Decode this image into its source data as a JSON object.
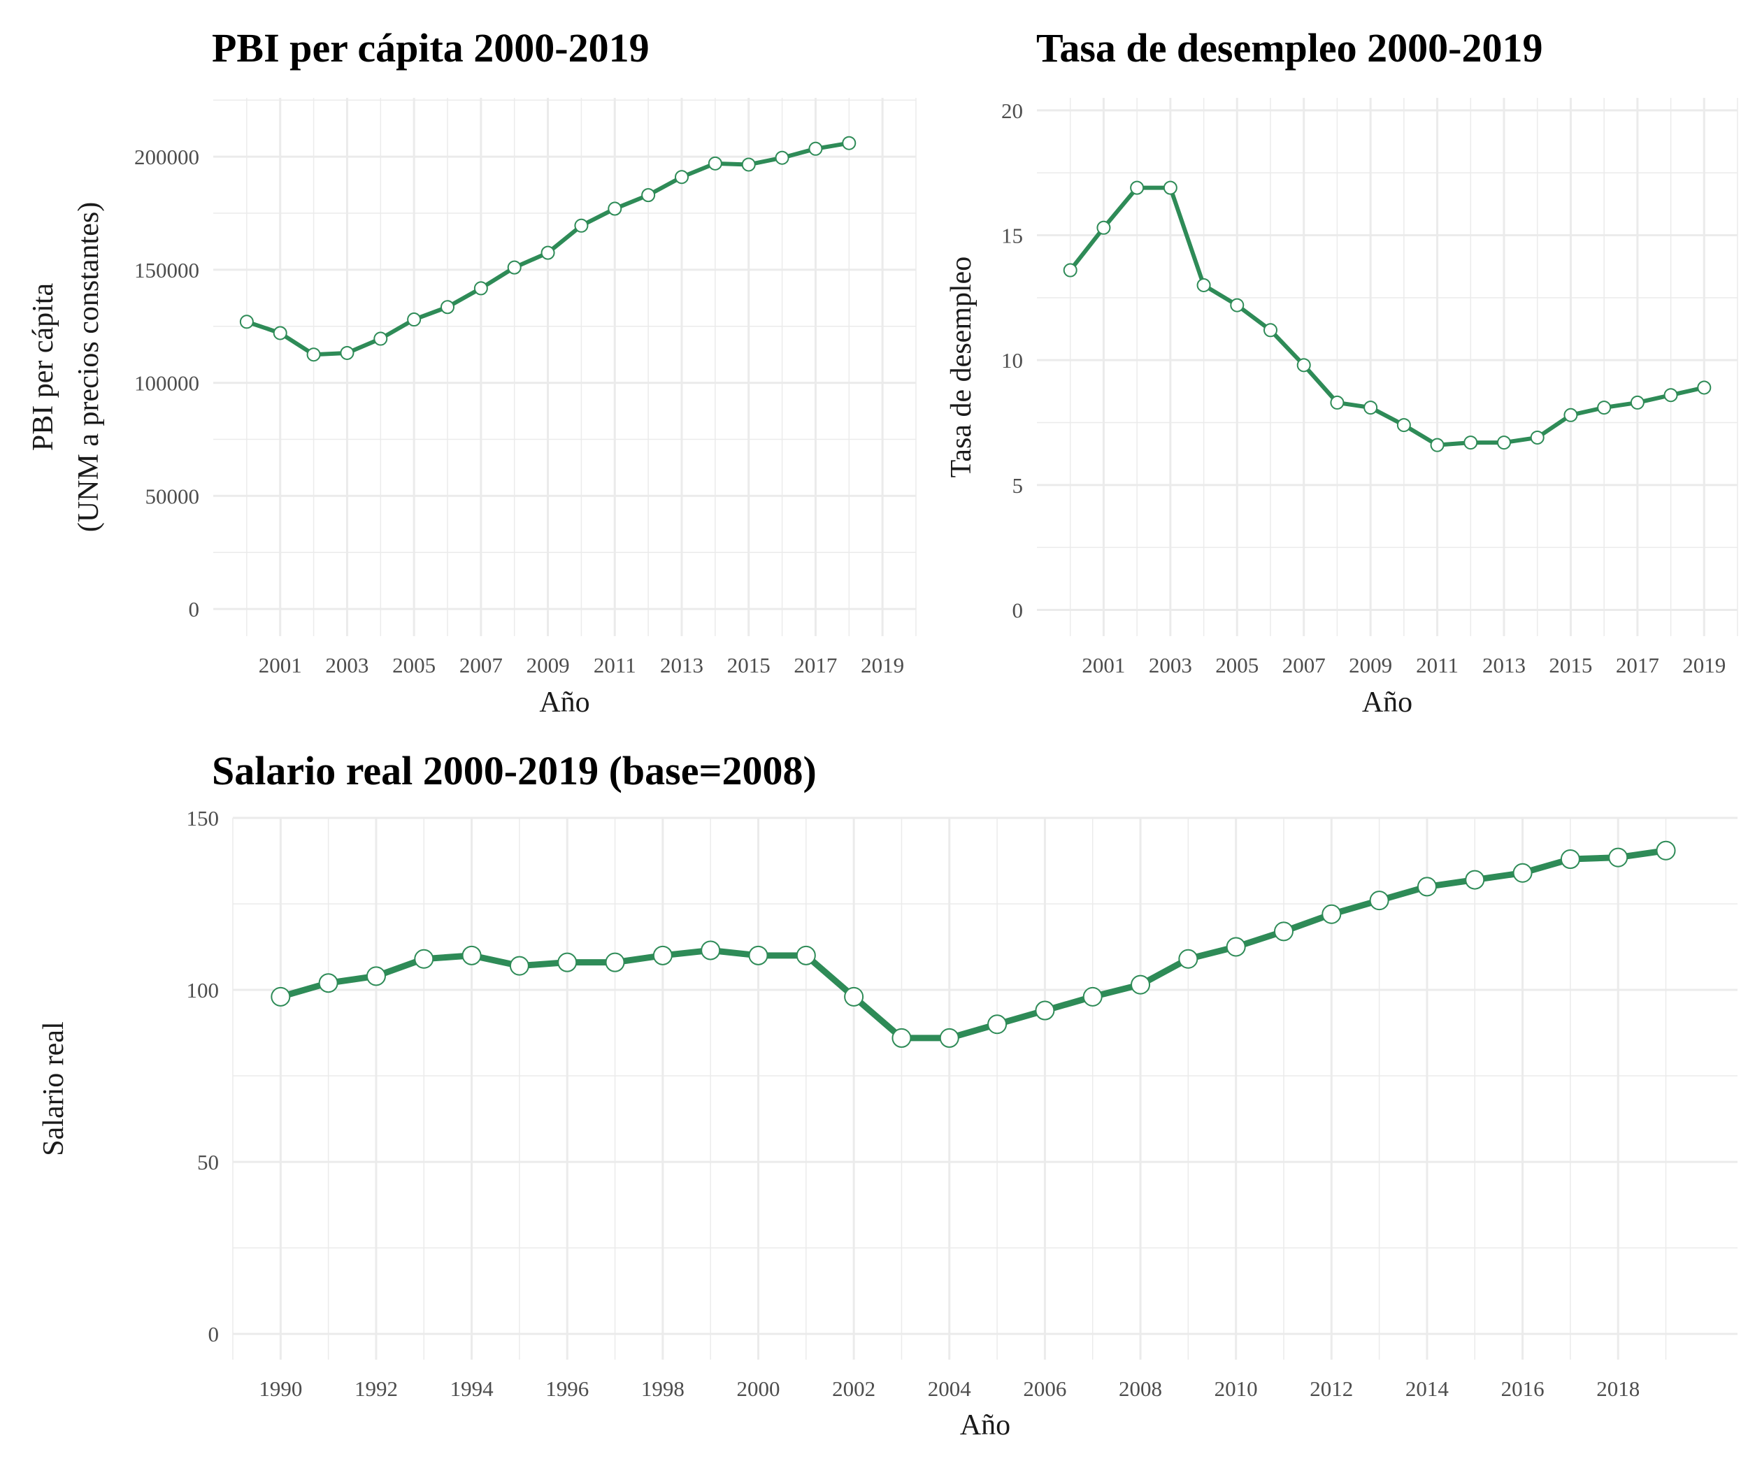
{
  "chart_data": [
    {
      "id": "pbi",
      "type": "line",
      "title": "PBI per cápita 2000-2019",
      "xlabel": "Año",
      "ylabel": [
        "PBI per cápita",
        "(UNM a precios constantes)"
      ],
      "x": [
        2000,
        2001,
        2002,
        2003,
        2004,
        2005,
        2006,
        2007,
        2008,
        2009,
        2010,
        2011,
        2012,
        2013,
        2014,
        2015,
        2016,
        2017,
        2018
      ],
      "values": [
        127000,
        122000,
        112500,
        113200,
        119500,
        128000,
        133500,
        141800,
        151000,
        157500,
        169500,
        177000,
        183000,
        191000,
        197000,
        196500,
        199500,
        203500,
        206000
      ],
      "xlim": [
        1999,
        2020
      ],
      "ylim": [
        -12000,
        226000
      ],
      "xticks": [
        2001,
        2003,
        2005,
        2007,
        2009,
        2011,
        2013,
        2015,
        2017,
        2019
      ],
      "yticks": [
        0,
        50000,
        100000,
        150000,
        200000
      ],
      "xticklabels": [
        "2001",
        "2003",
        "2005",
        "2007",
        "2009",
        "2011",
        "2013",
        "2015",
        "2017",
        "2019"
      ],
      "yticklabels": [
        "0",
        "50000",
        "100000",
        "150000",
        "200000"
      ],
      "grid": true,
      "color": "#2e8b57"
    },
    {
      "id": "desempleo",
      "type": "line",
      "title": "Tasa de desempleo 2000-2019",
      "xlabel": "Año",
      "ylabel": [
        "Tasa de desempleo"
      ],
      "x": [
        2000,
        2001,
        2002,
        2003,
        2004,
        2005,
        2006,
        2007,
        2008,
        2009,
        2010,
        2011,
        2012,
        2013,
        2014,
        2015,
        2016,
        2017,
        2018,
        2019
      ],
      "values": [
        13.6,
        15.3,
        16.9,
        16.9,
        13.0,
        12.2,
        11.2,
        9.8,
        8.3,
        8.1,
        7.4,
        6.6,
        6.7,
        6.7,
        6.9,
        7.8,
        8.1,
        8.3,
        8.6,
        8.9
      ],
      "xlim": [
        1999,
        2020
      ],
      "ylim": [
        -1.05,
        20.5
      ],
      "xticks": [
        2001,
        2003,
        2005,
        2007,
        2009,
        2011,
        2013,
        2015,
        2017,
        2019
      ],
      "yticks": [
        0,
        5,
        10,
        15,
        20
      ],
      "xticklabels": [
        "2001",
        "2003",
        "2005",
        "2007",
        "2009",
        "2011",
        "2013",
        "2015",
        "2017",
        "2019"
      ],
      "yticklabels": [
        "0",
        "5",
        "10",
        "15",
        "20"
      ],
      "grid": true,
      "color": "#2e8b57"
    },
    {
      "id": "salario",
      "type": "line",
      "title": "Salario real 2000-2019 (base=2008)",
      "xlabel": "Año",
      "ylabel": [
        "Salario real"
      ],
      "x": [
        1990,
        1991,
        1992,
        1993,
        1994,
        1995,
        1996,
        1997,
        1998,
        1999,
        2000,
        2001,
        2002,
        2003,
        2004,
        2005,
        2006,
        2007,
        2008,
        2009,
        2010,
        2011,
        2012,
        2013,
        2014,
        2015,
        2016,
        2017,
        2018,
        2019
      ],
      "values": [
        98,
        102,
        104,
        109,
        110,
        107,
        108,
        108,
        110,
        111.5,
        110,
        110,
        98,
        86,
        86,
        90,
        94,
        98,
        101.5,
        109,
        112.5,
        117,
        122,
        126,
        130,
        132,
        134,
        138,
        138.5,
        140.5
      ],
      "xlim": [
        1989,
        2020.5
      ],
      "ylim": [
        -7.5,
        150
      ],
      "xticks": [
        1990,
        1992,
        1994,
        1996,
        1998,
        2000,
        2002,
        2004,
        2006,
        2008,
        2010,
        2012,
        2014,
        2016,
        2018
      ],
      "yticks": [
        0,
        50,
        100,
        150
      ],
      "xticklabels": [
        "1990",
        "1992",
        "1994",
        "1996",
        "1998",
        "2000",
        "2002",
        "2004",
        "2006",
        "2008",
        "2010",
        "2012",
        "2014",
        "2016",
        "2018"
      ],
      "yticklabels": [
        "0",
        "50",
        "100",
        "150"
      ],
      "grid": true,
      "color": "#2e8b57"
    }
  ]
}
